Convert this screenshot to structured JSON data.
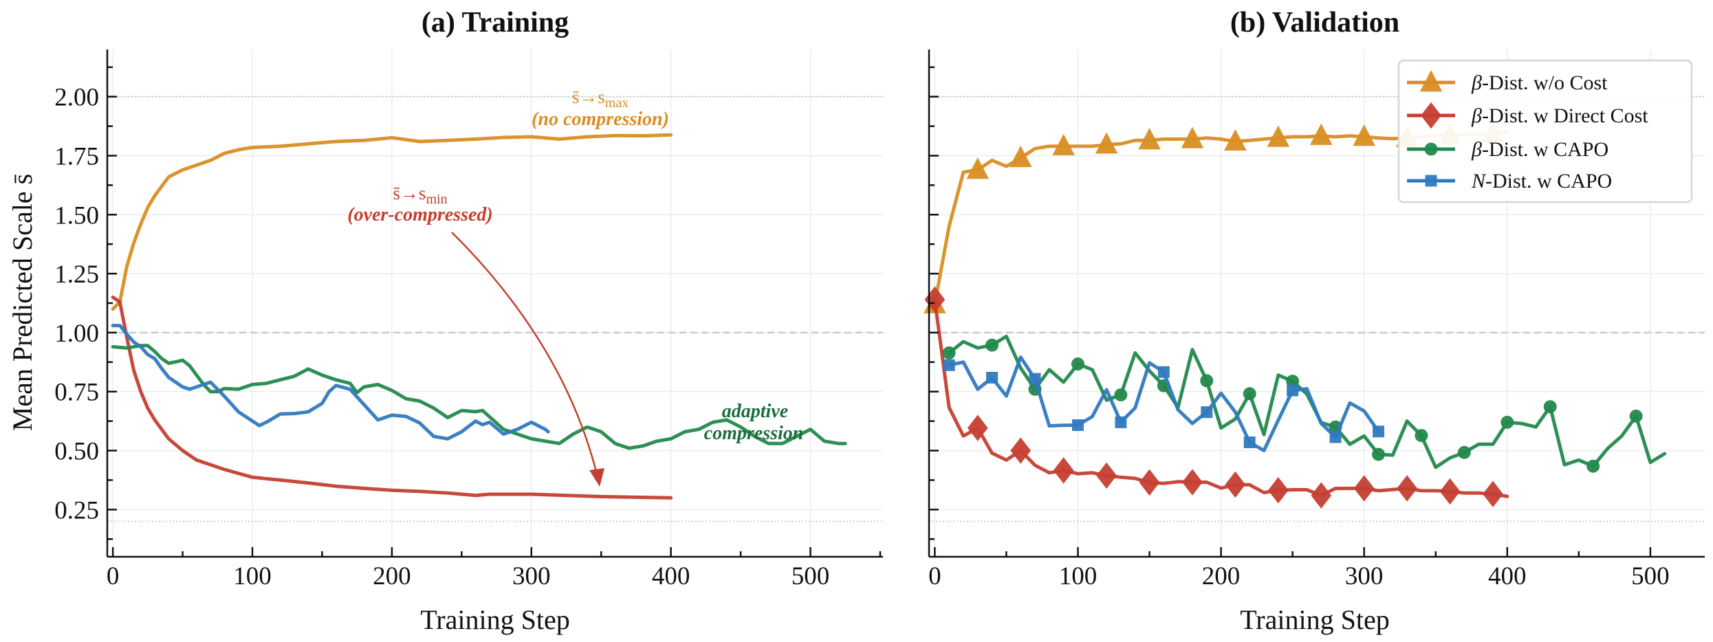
{
  "colors": {
    "orange": "#d98e22",
    "red": "#c53f31",
    "green": "#23894c",
    "blue": "#2f79c0",
    "annotation_green": "#1b6e3e",
    "grid": "#ececec",
    "reference": "#c8cccc"
  },
  "chart_data": [
    {
      "type": "line",
      "title": "(a) Training",
      "xlabel": "Training Step",
      "ylabel": "Mean Predicted Scale s̄",
      "xlim": [
        -4,
        552
      ],
      "ylim": [
        0.05,
        2.2
      ],
      "xticks": [
        0,
        100,
        200,
        300,
        400,
        500
      ],
      "yticks": [
        0.25,
        0.5,
        0.75,
        1.0,
        1.25,
        1.5,
        1.75,
        2.0
      ],
      "ytick_labels": [
        "0.25",
        "0.50",
        "0.75",
        "1.00",
        "1.25",
        "1.50",
        "1.75",
        "2.00"
      ],
      "xtick_labels": [
        "0",
        "100",
        "200",
        "300",
        "400",
        "500"
      ],
      "grid": true,
      "reference_lines": [
        {
          "y": 2.0,
          "style": "dotted"
        },
        {
          "y": 1.0,
          "style": "dashed"
        },
        {
          "y": 0.2,
          "style": "dotted"
        }
      ],
      "series": [
        {
          "name": "β-Dist. w/o Cost",
          "color_key": "orange",
          "x": [
            0,
            5,
            10,
            15,
            20,
            25,
            30,
            40,
            50,
            60,
            70,
            80,
            90,
            100,
            120,
            140,
            160,
            180,
            200,
            220,
            240,
            260,
            280,
            300,
            320,
            340,
            360,
            380,
            400
          ],
          "y": [
            1.1,
            1.13,
            1.28,
            1.38,
            1.46,
            1.53,
            1.58,
            1.66,
            1.69,
            1.71,
            1.73,
            1.76,
            1.775,
            1.785,
            1.79,
            1.8,
            1.81,
            1.815,
            1.826,
            1.81,
            1.815,
            1.82,
            1.827,
            1.83,
            1.82,
            1.83,
            1.835,
            1.834,
            1.838
          ]
        },
        {
          "name": "β-Dist. w Direct Cost",
          "color_key": "red",
          "x": [
            0,
            5,
            10,
            15,
            20,
            25,
            30,
            40,
            50,
            60,
            70,
            80,
            100,
            120,
            140,
            160,
            180,
            200,
            220,
            240,
            260,
            270,
            300,
            350,
            400
          ],
          "y": [
            1.15,
            1.13,
            0.98,
            0.84,
            0.75,
            0.68,
            0.63,
            0.55,
            0.5,
            0.46,
            0.44,
            0.42,
            0.387,
            0.375,
            0.363,
            0.349,
            0.34,
            0.332,
            0.327,
            0.32,
            0.31,
            0.315,
            0.315,
            0.305,
            0.3
          ]
        },
        {
          "name": "β-Dist. w CAPO",
          "color_key": "green",
          "x": [
            0,
            10,
            20,
            25,
            30,
            35,
            40,
            45,
            50,
            55,
            60,
            65,
            70,
            75,
            80,
            90,
            100,
            110,
            120,
            130,
            140,
            150,
            160,
            170,
            175,
            180,
            190,
            200,
            210,
            220,
            230,
            240,
            250,
            260,
            265,
            280,
            290,
            300,
            310,
            320,
            330,
            340,
            350,
            360,
            370,
            380,
            390,
            400,
            410,
            420,
            430,
            440,
            450,
            460,
            470,
            480,
            490,
            500,
            510,
            520,
            525
          ],
          "y": [
            0.94,
            0.935,
            0.945,
            0.945,
            0.92,
            0.89,
            0.87,
            0.876,
            0.883,
            0.86,
            0.82,
            0.78,
            0.75,
            0.75,
            0.763,
            0.76,
            0.78,
            0.785,
            0.8,
            0.815,
            0.846,
            0.82,
            0.8,
            0.785,
            0.746,
            0.77,
            0.78,
            0.755,
            0.72,
            0.71,
            0.68,
            0.64,
            0.67,
            0.665,
            0.67,
            0.59,
            0.57,
            0.55,
            0.54,
            0.53,
            0.57,
            0.6,
            0.58,
            0.53,
            0.51,
            0.52,
            0.54,
            0.55,
            0.58,
            0.59,
            0.62,
            0.63,
            0.6,
            0.56,
            0.53,
            0.53,
            0.56,
            0.59,
            0.54,
            0.53,
            0.53
          ]
        },
        {
          "name": "N-Dist. w CAPO",
          "color_key": "blue",
          "x": [
            0,
            5,
            10,
            15,
            20,
            25,
            30,
            35,
            40,
            50,
            55,
            60,
            70,
            80,
            90,
            100,
            105,
            110,
            120,
            130,
            140,
            150,
            155,
            160,
            170,
            180,
            190,
            200,
            210,
            220,
            230,
            240,
            250,
            260,
            265,
            270,
            280,
            290,
            300,
            310,
            312
          ],
          "y": [
            1.03,
            1.03,
            0.994,
            0.96,
            0.94,
            0.907,
            0.89,
            0.848,
            0.81,
            0.77,
            0.76,
            0.77,
            0.79,
            0.73,
            0.664,
            0.625,
            0.606,
            0.62,
            0.655,
            0.657,
            0.664,
            0.7,
            0.75,
            0.776,
            0.76,
            0.695,
            0.63,
            0.65,
            0.645,
            0.617,
            0.56,
            0.55,
            0.58,
            0.625,
            0.61,
            0.62,
            0.57,
            0.59,
            0.62,
            0.59,
            0.58
          ]
        }
      ],
      "annotations": [
        {
          "main": "s̄→s",
          "sub": "max",
          "note": "(no compression)",
          "color_key": "orange"
        },
        {
          "main": "s̄→s",
          "sub": "min",
          "note": "(over-compressed)",
          "color_key": "red",
          "arrow": true
        },
        {
          "line1": "adaptive",
          "line2": "compression",
          "color_key": "annotation_green"
        }
      ]
    },
    {
      "type": "line",
      "title": "(b) Validation",
      "xlabel": "Training Step",
      "xlim": [
        -4,
        538
      ],
      "ylim": [
        0.05,
        2.2
      ],
      "xticks": [
        0,
        100,
        200,
        300,
        400,
        500
      ],
      "xtick_labels": [
        "0",
        "100",
        "200",
        "300",
        "400",
        "500"
      ],
      "yticks": [
        0.25,
        0.5,
        0.75,
        1.0,
        1.25,
        1.5,
        1.75,
        2.0
      ],
      "grid": true,
      "legend": "top-right",
      "reference_lines": [
        {
          "y": 2.0,
          "style": "dotted"
        },
        {
          "y": 1.0,
          "style": "dashed"
        },
        {
          "y": 0.2,
          "style": "dotted"
        }
      ],
      "series": [
        {
          "name": "β-Dist. w/o Cost",
          "name_symbol": "β",
          "name_rest": "-Dist. w/o Cost",
          "color_key": "orange",
          "marker": "triangle",
          "x": [
            0,
            10,
            20,
            30,
            40,
            50,
            60,
            70,
            80,
            90,
            100,
            110,
            120,
            130,
            140,
            150,
            160,
            170,
            180,
            190,
            200,
            210,
            220,
            230,
            240,
            250,
            260,
            270,
            280,
            290,
            300,
            310,
            320,
            330,
            340,
            350,
            360,
            370,
            380,
            390,
            400
          ],
          "y": [
            1.12,
            1.45,
            1.68,
            1.69,
            1.73,
            1.705,
            1.74,
            1.78,
            1.79,
            1.79,
            1.79,
            1.79,
            1.797,
            1.8,
            1.815,
            1.815,
            1.82,
            1.82,
            1.82,
            1.825,
            1.82,
            1.81,
            1.815,
            1.82,
            1.826,
            1.83,
            1.83,
            1.834,
            1.83,
            1.834,
            1.83,
            1.825,
            1.822,
            1.825,
            1.83,
            1.835,
            1.835,
            1.84,
            1.84,
            1.845,
            1.846
          ],
          "marker_x": [
            0,
            30,
            60,
            90,
            120,
            150,
            180,
            210,
            240,
            270,
            300,
            330,
            360,
            390
          ]
        },
        {
          "name": "β-Dist. w Direct Cost",
          "name_symbol": "β",
          "name_rest": "-Dist. w Direct Cost",
          "color_key": "red",
          "marker": "diamond",
          "x": [
            0,
            10,
            20,
            30,
            40,
            50,
            60,
            70,
            80,
            90,
            100,
            110,
            120,
            130,
            140,
            150,
            160,
            170,
            180,
            190,
            200,
            210,
            220,
            230,
            240,
            250,
            260,
            270,
            280,
            290,
            300,
            310,
            320,
            330,
            340,
            350,
            360,
            370,
            380,
            390,
            400
          ],
          "y": [
            1.14,
            0.683,
            0.562,
            0.596,
            0.489,
            0.46,
            0.5,
            0.438,
            0.406,
            0.416,
            0.402,
            0.406,
            0.394,
            0.387,
            0.382,
            0.365,
            0.361,
            0.368,
            0.366,
            0.366,
            0.341,
            0.356,
            0.355,
            0.322,
            0.332,
            0.334,
            0.334,
            0.31,
            0.34,
            0.34,
            0.34,
            0.33,
            0.335,
            0.34,
            0.33,
            0.33,
            0.327,
            0.32,
            0.32,
            0.316,
            0.306
          ],
          "marker_x": [
            0,
            30,
            60,
            90,
            120,
            150,
            180,
            210,
            240,
            270,
            300,
            330,
            360,
            390
          ]
        },
        {
          "name": "β-Dist. w CAPO",
          "name_symbol": "β",
          "name_rest": "-Dist. w CAPO",
          "color_key": "green",
          "marker": "circle",
          "x": [
            10,
            20,
            30,
            40,
            50,
            60,
            70,
            80,
            90,
            100,
            110,
            120,
            130,
            140,
            150,
            160,
            170,
            180,
            190,
            200,
            210,
            220,
            230,
            240,
            250,
            260,
            270,
            280,
            290,
            300,
            310,
            320,
            330,
            340,
            350,
            360,
            370,
            380,
            390,
            400,
            410,
            420,
            430,
            440,
            450,
            460,
            470,
            480,
            490,
            500,
            510
          ],
          "y": [
            0.914,
            0.962,
            0.935,
            0.947,
            0.984,
            0.85,
            0.76,
            0.843,
            0.79,
            0.867,
            0.843,
            0.714,
            0.736,
            0.914,
            0.838,
            0.775,
            0.683,
            0.928,
            0.796,
            0.596,
            0.634,
            0.741,
            0.568,
            0.82,
            0.794,
            0.74,
            0.619,
            0.6,
            0.527,
            0.562,
            0.484,
            0.481,
            0.625,
            0.564,
            0.429,
            0.469,
            0.492,
            0.527,
            0.527,
            0.62,
            0.615,
            0.6,
            0.686,
            0.44,
            0.46,
            0.434,
            0.508,
            0.562,
            0.646,
            0.45,
            0.487
          ],
          "marker_x": [
            10,
            40,
            70,
            100,
            130,
            160,
            190,
            220,
            250,
            280,
            310,
            340,
            370,
            400,
            430,
            460,
            490
          ]
        },
        {
          "name": "N-Dist. w CAPO",
          "name_symbol": "N",
          "name_rest": "-Dist. w CAPO",
          "color_key": "blue",
          "marker": "square",
          "x": [
            10,
            20,
            30,
            40,
            50,
            60,
            70,
            80,
            90,
            100,
            110,
            120,
            130,
            140,
            150,
            160,
            170,
            180,
            190,
            200,
            210,
            220,
            230,
            240,
            250,
            260,
            270,
            280,
            290,
            300,
            310
          ],
          "y": [
            0.862,
            0.875,
            0.76,
            0.809,
            0.731,
            0.896,
            0.804,
            0.605,
            0.607,
            0.608,
            0.644,
            0.758,
            0.62,
            0.681,
            0.872,
            0.833,
            0.673,
            0.615,
            0.663,
            0.743,
            0.663,
            0.535,
            0.5,
            0.629,
            0.755,
            0.762,
            0.615,
            0.557,
            0.702,
            0.668,
            0.581
          ],
          "marker_x": [
            10,
            40,
            70,
            100,
            130,
            160,
            190,
            220,
            250,
            280,
            310
          ]
        }
      ]
    }
  ]
}
